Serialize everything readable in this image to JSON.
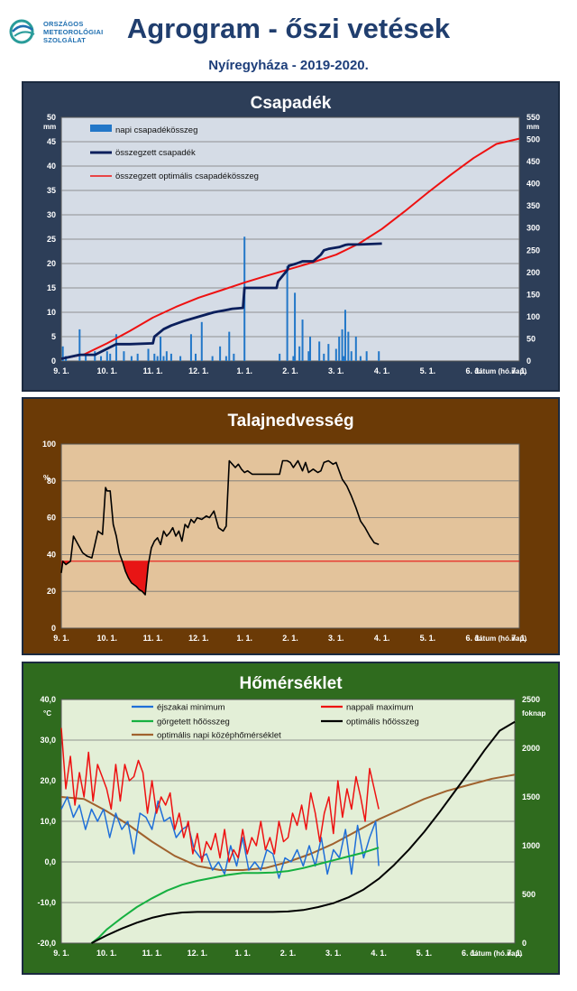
{
  "header": {
    "logo_lines": [
      "ORSZÁGOS",
      "METEOROLÓGIAI",
      "SZOLGÁLAT"
    ],
    "title": "Agrogram - őszi vetések",
    "subtitle": "Nyíregyháza - 2019-2020."
  },
  "colors": {
    "header_text": "#203e6e",
    "panel1_bg": "#2d3e58",
    "panel1_plot": "#d5dce6",
    "panel2_bg": "#6b3a06",
    "panel2_plot": "#e3c39b",
    "panel3_bg": "#2f6b1e",
    "panel3_plot": "#e3efd7"
  },
  "chart_data": [
    {
      "id": "precip",
      "type": "bar+line",
      "title": "Csapadék",
      "ylabel": "mm",
      "y2label": "mm",
      "xlabel": "dátum (hó.nap)",
      "x_ticks": [
        "9. 1.",
        "10. 1.",
        "11. 1.",
        "12. 1.",
        "1. 1.",
        "2. 1.",
        "3. 1.",
        "4. 1.",
        "5. 1.",
        "6. 1.",
        "7. 1."
      ],
      "ylim": [
        0,
        50
      ],
      "yticks": [
        0,
        5,
        10,
        15,
        20,
        25,
        30,
        35,
        40,
        45,
        50
      ],
      "y2lim": [
        0,
        550
      ],
      "y2ticks": [
        0,
        50,
        100,
        150,
        200,
        250,
        300,
        350,
        400,
        450,
        500,
        550
      ],
      "legend": [
        "napi csapadékösszeg",
        "összegzett csapadék",
        "összegzett optimális csapadékösszeg"
      ],
      "series": [
        {
          "name": "napi csapadékösszeg",
          "axis": "left",
          "color": "#2277c8",
          "kind": "bar",
          "x": [
            1,
            3,
            12,
            16,
            22,
            26,
            30,
            32,
            36,
            41,
            46,
            50,
            57,
            61,
            63,
            65,
            67,
            69,
            72,
            78,
            85,
            88,
            92,
            99,
            104,
            108,
            110,
            113,
            120,
            143,
            148,
            152,
            153,
            156,
            158,
            162,
            163,
            169,
            172,
            175,
            180,
            182,
            184,
            185,
            186,
            188,
            190,
            193,
            196,
            200,
            208
          ],
          "values": [
            3,
            1,
            6.5,
            1.5,
            2,
            1,
            2,
            1.5,
            5.5,
            2,
            1,
            1.5,
            2.5,
            1.5,
            1,
            5,
            1,
            2,
            1.5,
            1,
            5.5,
            1.5,
            8,
            1,
            3,
            1,
            6,
            1.5,
            25.5,
            1.5,
            19.5,
            1,
            14,
            3,
            8.5,
            2,
            5,
            4,
            1.5,
            3.5,
            2.5,
            5,
            6.5,
            1,
            10.5,
            6,
            2,
            5,
            1,
            2,
            2
          ]
        },
        {
          "name": "összegzett csapadék",
          "axis": "right",
          "color": "#0b1f5c",
          "kind": "line",
          "x": [
            0,
            12,
            22,
            36,
            40,
            45,
            60,
            61,
            67,
            72,
            80,
            90,
            100,
            108,
            112,
            119,
            120,
            141,
            142,
            148,
            149,
            154,
            158,
            165,
            170,
            172,
            175,
            182,
            186,
            188,
            195,
            210
          ],
          "values": [
            5,
            14,
            14,
            38,
            38,
            38,
            40,
            55,
            72,
            80,
            90,
            100,
            110,
            115,
            118,
            120,
            165,
            165,
            180,
            205,
            215,
            220,
            225,
            225,
            240,
            250,
            253,
            257,
            262,
            263,
            263,
            265
          ]
        },
        {
          "name": "összegzett optimális csapadékösszeg",
          "axis": "right",
          "color": "#ee1111",
          "kind": "line",
          "x": [
            0,
            15,
            30,
            45,
            60,
            75,
            90,
            105,
            120,
            135,
            150,
            165,
            180,
            195,
            210,
            225,
            240,
            255,
            270,
            285,
            300
          ],
          "values": [
            5,
            15,
            40,
            68,
            98,
            122,
            143,
            160,
            177,
            193,
            208,
            223,
            240,
            265,
            298,
            338,
            380,
            420,
            458,
            490,
            502
          ]
        }
      ]
    },
    {
      "id": "soil",
      "type": "line",
      "title": "Talajnedvesség",
      "ylabel": "%",
      "xlabel": "dátum (hó.nap)",
      "x_ticks": [
        "9. 1.",
        "10. 1.",
        "11. 1.",
        "12. 1.",
        "1. 1.",
        "2. 1.",
        "3. 1.",
        "4. 1.",
        "5. 1.",
        "6. 1.",
        "7. 1."
      ],
      "ylim": [
        0,
        110
      ],
      "yticks": [
        0,
        20,
        40,
        60,
        80,
        100
      ],
      "threshold": 40,
      "threshold_color": "#e81515",
      "series": [
        {
          "name": "talajnedvesség",
          "color": "#000000",
          "x": [
            0,
            1,
            3,
            6,
            8,
            11,
            14,
            17,
            20,
            24,
            27,
            29,
            30,
            32,
            34,
            36,
            38,
            40,
            42,
            44,
            46,
            49,
            51,
            53,
            55,
            57,
            59,
            61,
            63,
            65,
            67,
            69,
            71,
            73,
            75,
            77,
            79,
            81,
            83,
            85,
            87,
            89,
            92,
            95,
            97,
            100,
            103,
            106,
            108,
            110,
            112,
            114,
            116,
            118,
            120,
            122,
            125,
            130,
            135,
            140,
            143,
            145,
            148,
            150,
            152,
            155,
            158,
            160,
            162,
            165,
            168,
            170,
            172,
            175,
            178,
            180,
            182,
            184,
            187,
            190,
            193,
            196,
            199,
            202,
            205,
            208
          ],
          "values": [
            33,
            40,
            38,
            40,
            55,
            50,
            45,
            43,
            42,
            58,
            56,
            84,
            82,
            82,
            62,
            55,
            45,
            40,
            34,
            30,
            27,
            25,
            23,
            22,
            20,
            38,
            48,
            52,
            54,
            50,
            58,
            55,
            57,
            60,
            55,
            58,
            52,
            62,
            60,
            65,
            63,
            66,
            65,
            67,
            66,
            70,
            60,
            58,
            61,
            100,
            98,
            96,
            98,
            95,
            93,
            94,
            92,
            92,
            92,
            92,
            92,
            100,
            100,
            99,
            96,
            100,
            94,
            99,
            93,
            95,
            93,
            94,
            99,
            100,
            98,
            99,
            94,
            89,
            85,
            79,
            72,
            64,
            60,
            55,
            51,
            50
          ]
        }
      ]
    },
    {
      "id": "temp",
      "type": "line",
      "title": "Hőmérséklet",
      "ylabel": "°C",
      "y2label": "foknap",
      "xlabel": "dátum (hó.nap)",
      "x_ticks": [
        "9. 1.",
        "10. 1.",
        "11. 1.",
        "12. 1.",
        "1. 1.",
        "2. 1.",
        "3. 1.",
        "4. 1.",
        "5. 1.",
        "6. 1.",
        "7. 1."
      ],
      "ylim": [
        -20,
        40
      ],
      "yticks": [
        "-20,0",
        "-10,0",
        "0,0",
        "10,0",
        "20,0",
        "30,0",
        "40,0"
      ],
      "y2lim": [
        0,
        2500
      ],
      "y2ticks": [
        0,
        500,
        1000,
        1500,
        2000,
        2500
      ],
      "legend": [
        "éjszakai minimum",
        "nappali maximum",
        "görgetett hőösszeg",
        "optimális hőösszeg",
        "optimális napi középhőmérséklet"
      ],
      "series": [
        {
          "name": "éjszakai minimum",
          "axis": "left",
          "color": "#1f6fd8",
          "x": [
            0,
            4,
            8,
            12,
            16,
            20,
            24,
            28,
            32,
            36,
            40,
            44,
            48,
            52,
            56,
            60,
            64,
            68,
            72,
            76,
            80,
            84,
            88,
            92,
            96,
            100,
            104,
            108,
            112,
            116,
            120,
            124,
            128,
            132,
            136,
            140,
            144,
            148,
            152,
            156,
            160,
            164,
            168,
            172,
            176,
            180,
            184,
            188,
            192,
            196,
            200,
            204,
            208,
            210
          ],
          "values": [
            13,
            16,
            11,
            14,
            8,
            13,
            10,
            13,
            6,
            12,
            8,
            10,
            2,
            12,
            11,
            8,
            15,
            10,
            11,
            6,
            8,
            9,
            3,
            1,
            2,
            -2,
            0,
            -3,
            4,
            -1,
            6,
            -2,
            0,
            -2,
            3,
            2,
            -4,
            1,
            0,
            3,
            -1,
            4,
            -1,
            6,
            -3,
            3,
            1,
            8,
            -3,
            9,
            1,
            6,
            10,
            -1
          ]
        },
        {
          "name": "nappali maximum",
          "axis": "left",
          "color": "#ee1111",
          "x": [
            0,
            3,
            6,
            9,
            12,
            15,
            18,
            21,
            24,
            27,
            30,
            33,
            36,
            39,
            42,
            45,
            48,
            51,
            54,
            57,
            60,
            63,
            66,
            69,
            72,
            75,
            78,
            81,
            84,
            87,
            90,
            93,
            96,
            99,
            102,
            105,
            108,
            111,
            114,
            117,
            120,
            123,
            126,
            129,
            132,
            135,
            138,
            141,
            144,
            147,
            150,
            153,
            156,
            159,
            162,
            165,
            168,
            171,
            174,
            177,
            180,
            183,
            186,
            189,
            192,
            195,
            198,
            201,
            204,
            207,
            210
          ],
          "values": [
            33,
            18,
            26,
            14,
            22,
            16,
            27,
            15,
            24,
            21,
            18,
            13,
            24,
            15,
            24,
            20,
            21,
            25,
            22,
            12,
            20,
            12,
            16,
            14,
            17,
            8,
            12,
            6,
            10,
            2,
            7,
            0,
            5,
            3,
            7,
            1,
            8,
            0,
            3,
            1,
            8,
            2,
            6,
            4,
            10,
            3,
            6,
            2,
            10,
            5,
            6,
            12,
            9,
            14,
            8,
            17,
            12,
            5,
            12,
            16,
            7,
            20,
            11,
            18,
            13,
            21,
            16,
            10,
            23,
            18,
            13
          ]
        },
        {
          "name": "görgetett hőösszeg",
          "axis": "right",
          "color": "#16b040",
          "x": [
            20,
            25,
            30,
            40,
            50,
            60,
            70,
            80,
            90,
            100,
            110,
            120,
            130,
            140,
            150,
            160,
            170,
            180,
            190,
            200,
            210
          ],
          "values": [
            0,
            60,
            140,
            260,
            370,
            460,
            540,
            600,
            640,
            670,
            700,
            720,
            720,
            725,
            740,
            770,
            810,
            850,
            890,
            930,
            980
          ]
        },
        {
          "name": "optimális hőösszeg",
          "axis": "right",
          "color": "#000000",
          "x": [
            20,
            30,
            40,
            50,
            60,
            70,
            80,
            90,
            100,
            110,
            120,
            130,
            140,
            150,
            160,
            170,
            180,
            190,
            200,
            210,
            220,
            230,
            240,
            250,
            260,
            270,
            280,
            290,
            300
          ],
          "values": [
            0,
            80,
            150,
            210,
            260,
            295,
            315,
            320,
            320,
            320,
            320,
            320,
            320,
            325,
            340,
            370,
            410,
            470,
            550,
            660,
            800,
            960,
            1140,
            1340,
            1550,
            1760,
            1980,
            2180,
            2270
          ]
        },
        {
          "name": "optimális napi középhőmérséklet",
          "axis": "left",
          "color": "#a0622e",
          "x": [
            0,
            15,
            30,
            45,
            60,
            75,
            90,
            105,
            120,
            135,
            150,
            165,
            180,
            195,
            210,
            225,
            240,
            255,
            270,
            285,
            300
          ],
          "values": [
            16,
            15.5,
            12.5,
            9,
            5,
            1.5,
            -1,
            -2,
            -2,
            -1.5,
            0,
            2,
            4.5,
            7.5,
            10.5,
            13,
            15.5,
            17.5,
            19,
            20.5,
            21.5
          ]
        }
      ]
    }
  ]
}
